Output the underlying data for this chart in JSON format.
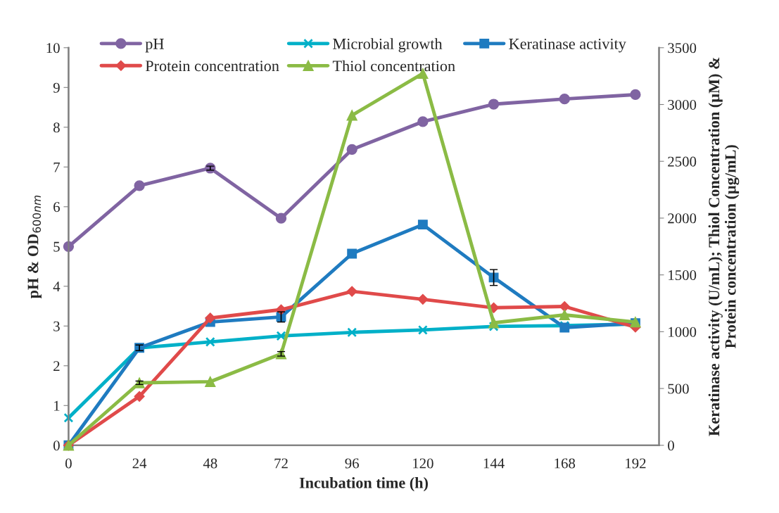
{
  "chart_data": {
    "type": "line",
    "xlabel": "Incubation time (h)",
    "ylabel": "pH & OD$_{600nm}$",
    "y2label": "Keratinase activity (U/mL); Thiol Concentration (µM) &\nProtein concentration (µg/mL)",
    "x": [
      0,
      24,
      48,
      72,
      96,
      120,
      144,
      168,
      192
    ],
    "xlim": [
      0,
      200
    ],
    "xticks": [
      0,
      24,
      48,
      72,
      96,
      120,
      144,
      168,
      192
    ],
    "ylim": [
      0,
      10
    ],
    "yticks": [
      0,
      1,
      2,
      3,
      4,
      5,
      6,
      7,
      8,
      9,
      10
    ],
    "y2lim": [
      0,
      3500
    ],
    "y2ticks": [
      0,
      500,
      1000,
      1500,
      2000,
      2500,
      3000,
      3500
    ],
    "legend": "top",
    "grid": false,
    "line_style": "solid",
    "series": [
      {
        "name": "pH",
        "color": "#8064a2",
        "marker": "circle",
        "values": [
          5.0,
          6.53,
          6.97,
          5.71,
          7.44,
          8.14,
          8.58,
          8.71,
          8.82
        ],
        "errors": [
          null,
          null,
          0.05,
          null,
          null,
          null,
          null,
          null,
          null
        ]
      },
      {
        "name": "Microbial growth",
        "color": "#00b0c8",
        "marker": "cross",
        "values": [
          0.69,
          2.45,
          2.6,
          2.75,
          2.84,
          2.9,
          2.99,
          3.01,
          3.05
        ]
      },
      {
        "name": "Keratinase activity",
        "color": "#1f7bc0",
        "marker": "square",
        "axis": "y2",
        "values": [
          0,
          858,
          1085,
          1130,
          1687,
          1943,
          1477,
          1036,
          1075
        ],
        "errors": [
          null,
          25,
          null,
          45,
          null,
          null,
          70,
          null,
          null
        ]
      },
      {
        "name": "Protein concentration",
        "color": "#e04a4a",
        "marker": "diamond",
        "axis": "y2",
        "values": [
          0,
          430,
          1120,
          1194,
          1355,
          1285,
          1211,
          1222,
          1040
        ]
      },
      {
        "name": "Thiol concentration",
        "color": "#8bbb45",
        "marker": "triangle",
        "axis": "y2",
        "values": [
          0,
          550,
          560,
          805,
          2905,
          3273,
          1078,
          1148,
          1085
        ],
        "errors": [
          null,
          15,
          null,
          20,
          null,
          null,
          null,
          null,
          null
        ]
      }
    ]
  }
}
